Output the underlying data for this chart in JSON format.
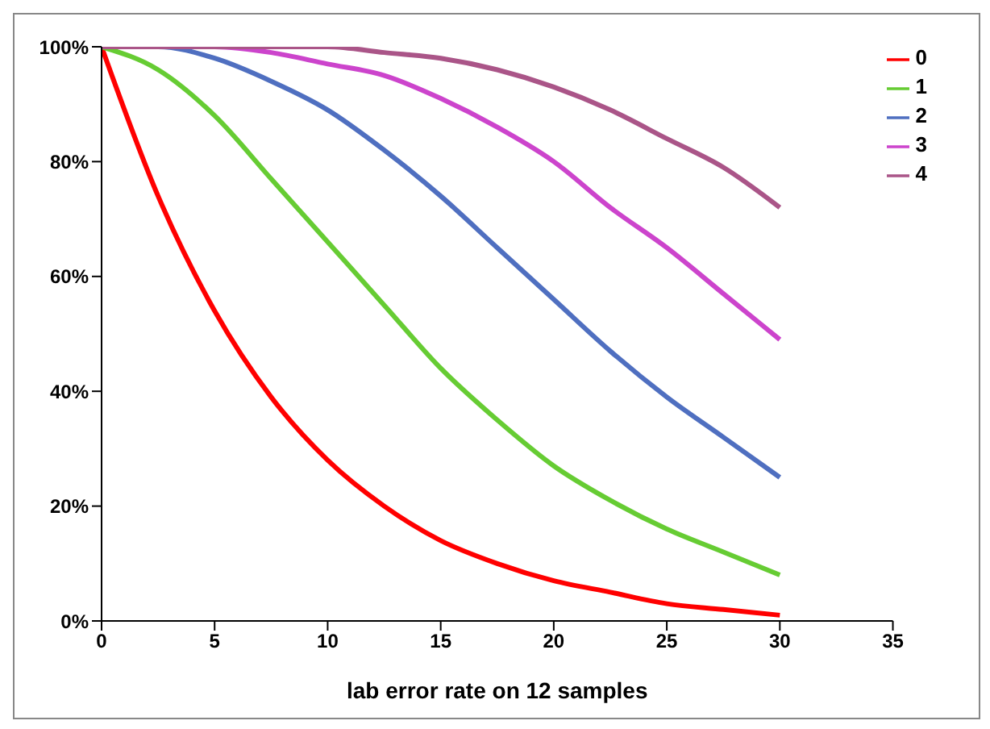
{
  "chart_data": {
    "type": "line",
    "xlabel": "lab error rate on 12 samples",
    "x": [
      0,
      2.5,
      5,
      7.5,
      10,
      12.5,
      15,
      17.5,
      20,
      22.5,
      25,
      27.5,
      30
    ],
    "series": [
      {
        "name": "0",
        "color": "#ff0000",
        "values": [
          100,
          74,
          54,
          39,
          28,
          20,
          14,
          10,
          7,
          5,
          3,
          2,
          1
        ]
      },
      {
        "name": "1",
        "color": "#66cc33",
        "values": [
          100,
          96,
          88,
          77,
          66,
          55,
          44,
          35,
          27,
          21,
          16,
          12,
          8
        ]
      },
      {
        "name": "2",
        "color": "#4f6fc0",
        "values": [
          100,
          100,
          98,
          94,
          89,
          82,
          74,
          65,
          56,
          47,
          39,
          32,
          25
        ]
      },
      {
        "name": "3",
        "color": "#cc44cc",
        "values": [
          100,
          100,
          100,
          99,
          97,
          95,
          91,
          86,
          80,
          72,
          65,
          57,
          49
        ]
      },
      {
        "name": "4",
        "color": "#aa5588",
        "values": [
          100,
          100,
          100,
          100,
          100,
          99,
          98,
          96,
          93,
          89,
          84,
          79,
          72
        ]
      }
    ],
    "xlim": [
      0,
      35
    ],
    "xticks": [
      0,
      5,
      10,
      15,
      20,
      25,
      30,
      35
    ],
    "ylim": [
      0,
      100
    ],
    "yticks": [
      {
        "value": 0,
        "label": "0%"
      },
      {
        "value": 20,
        "label": "20%"
      },
      {
        "value": 40,
        "label": "40%"
      },
      {
        "value": 60,
        "label": "60%"
      },
      {
        "value": 80,
        "label": "80%"
      },
      {
        "value": 100,
        "label": "100%"
      }
    ],
    "grid": false,
    "legend": "top right",
    "marker": "none",
    "line_style": "solid"
  }
}
